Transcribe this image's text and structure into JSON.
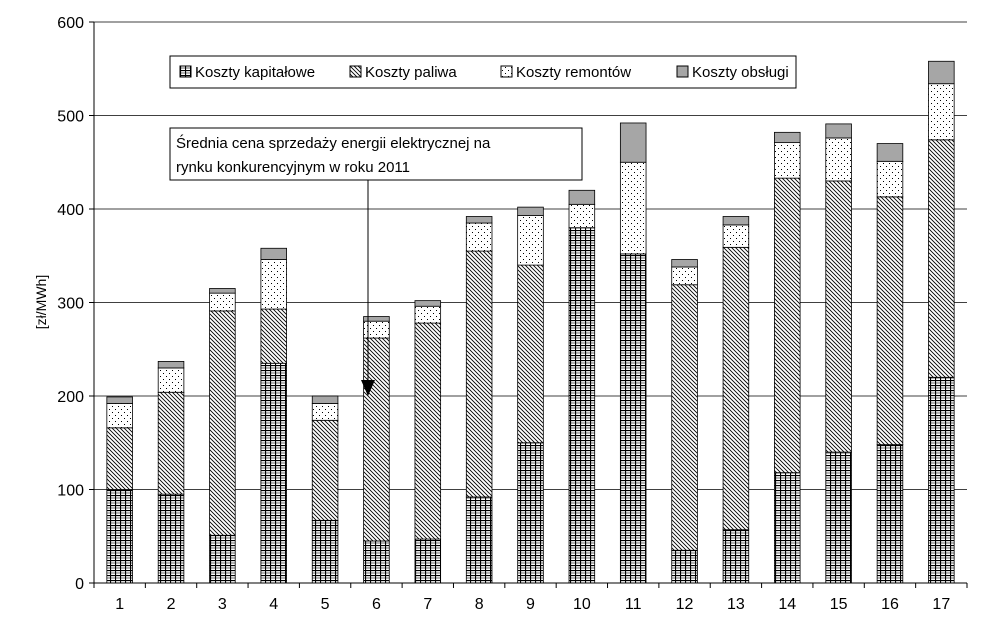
{
  "chart_data": {
    "type": "bar",
    "stacked": true,
    "categories": [
      "1",
      "2",
      "3",
      "4",
      "5",
      "6",
      "7",
      "8",
      "9",
      "10",
      "11",
      "12",
      "13",
      "14",
      "15",
      "16",
      "17"
    ],
    "series": [
      {
        "name": "Koszty kapitałowe",
        "pattern": "grid",
        "values": [
          100,
          95,
          51,
          235,
          67,
          45,
          47,
          92,
          150,
          380,
          352,
          35,
          57,
          118,
          140,
          148,
          220
        ]
      },
      {
        "name": "Koszty paliwa",
        "pattern": "diagonal",
        "values": [
          66,
          109,
          240,
          58,
          107,
          217,
          231,
          263,
          190,
          0,
          0,
          284,
          302,
          315,
          290,
          265,
          254
        ]
      },
      {
        "name": "Koszty remontów",
        "pattern": "dots",
        "values": [
          26,
          26,
          19,
          53,
          18,
          18,
          18,
          30,
          53,
          25,
          98,
          19,
          24,
          38,
          46,
          38,
          60
        ]
      },
      {
        "name": "Koszty obsługi",
        "pattern": "solid",
        "color": "#a6a6a6",
        "values": [
          7,
          7,
          5,
          12,
          8,
          5,
          6,
          7,
          9,
          15,
          42,
          8,
          9,
          11,
          15,
          19,
          24
        ]
      }
    ],
    "ylabel": "[zł/MWh]",
    "xlabel": "",
    "ylim": [
      0,
      600
    ],
    "yticks": [
      0,
      100,
      200,
      300,
      400,
      500,
      600
    ],
    "grid": true,
    "legend_position": "top",
    "annotation": {
      "text_lines": [
        "Średnia cena sprzedaży energii elektrycznej na",
        "rynku konkurencyjnym w roku 2011"
      ],
      "points_to_value": 200
    }
  }
}
